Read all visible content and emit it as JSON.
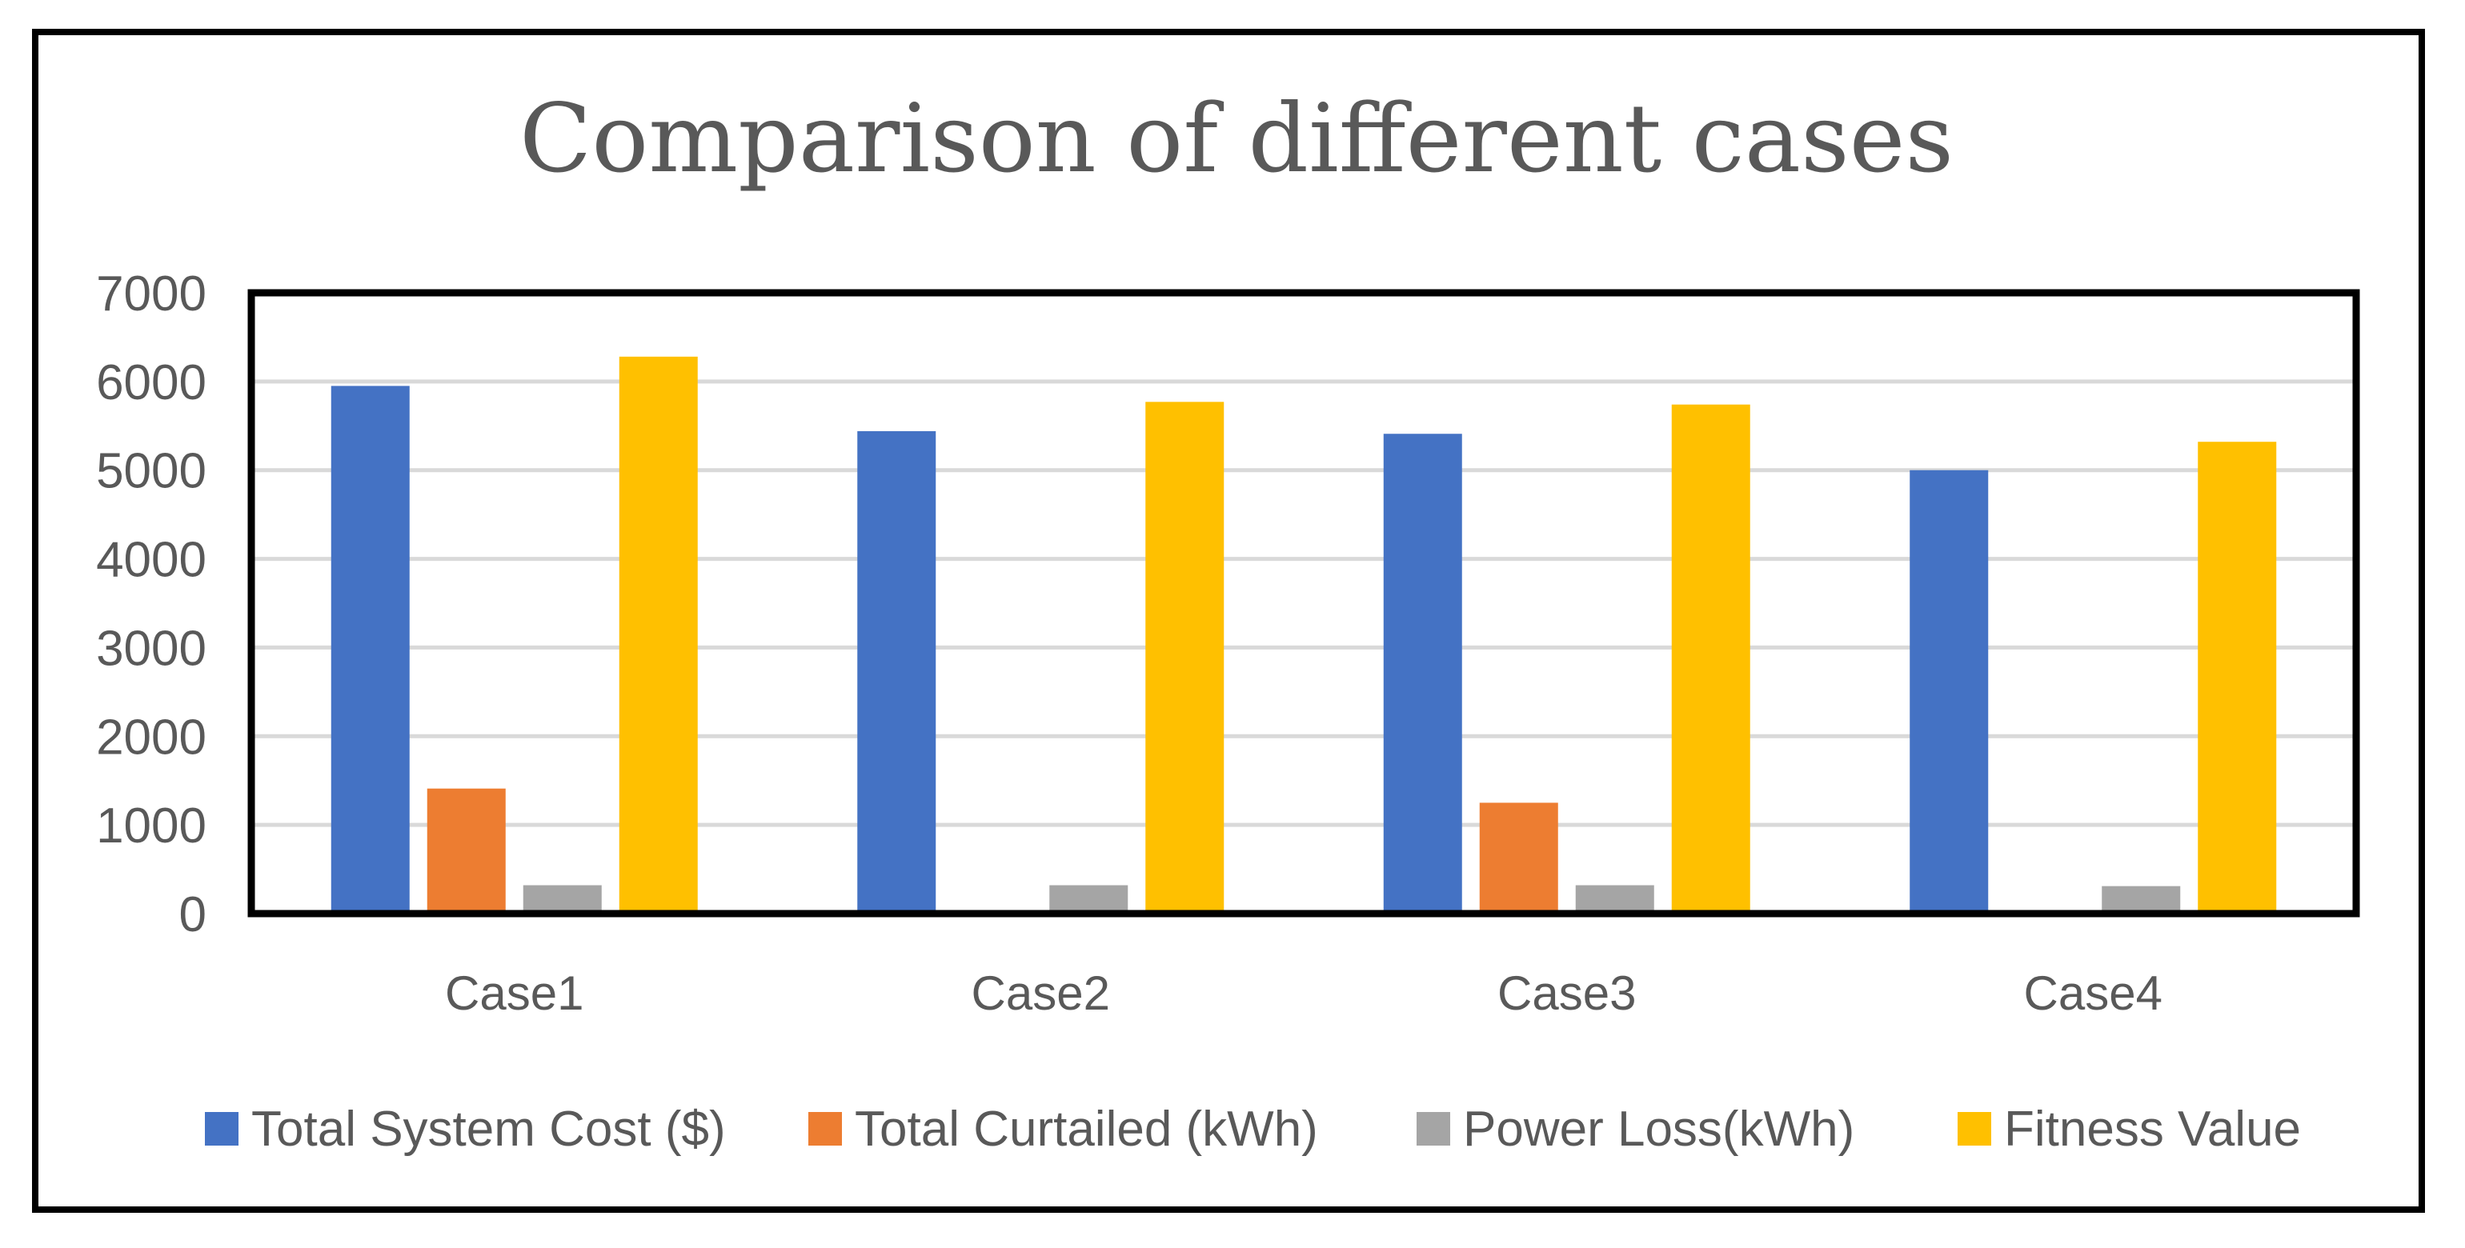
{
  "chart_data": {
    "type": "bar",
    "title": "Comparison of different cases",
    "xlabel": "",
    "ylabel": "",
    "categories": [
      "Case1",
      "Case2",
      "Case3",
      "Case4"
    ],
    "ylim": [
      0,
      7000
    ],
    "yticks": [
      0,
      1000,
      2000,
      3000,
      4000,
      5000,
      6000,
      7000
    ],
    "grid": true,
    "legend_position": "bottom",
    "series": [
      {
        "name": "Total System Cost ($)",
        "color": "#4472C4",
        "values": [
          5950,
          5440,
          5410,
          5000
        ]
      },
      {
        "name": "Total Curtailed (kWh)",
        "color": "#ED7D31",
        "values": [
          1410,
          0,
          1250,
          0
        ]
      },
      {
        "name": "Power Loss(kWh)",
        "color": "#A5A5A5",
        "values": [
          320,
          320,
          320,
          310
        ]
      },
      {
        "name": "Fitness Value",
        "color": "#FFC000",
        "values": [
          6280,
          5770,
          5740,
          5320
        ]
      }
    ]
  }
}
